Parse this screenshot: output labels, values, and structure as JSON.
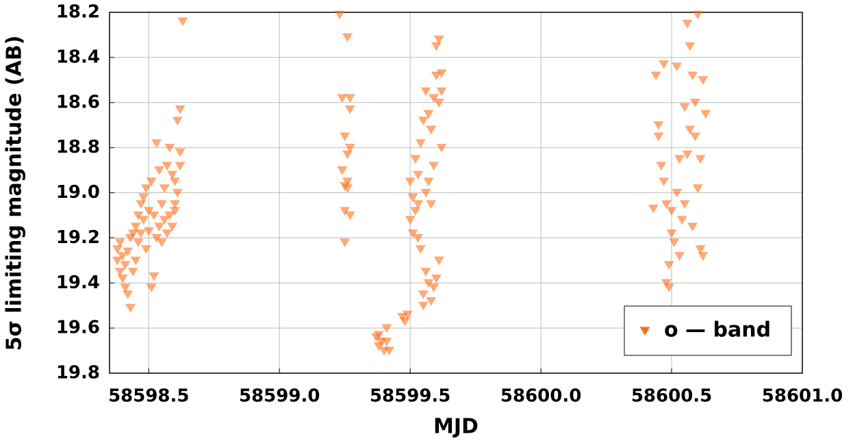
{
  "chart_data": {
    "type": "scatter",
    "xlabel": "MJD",
    "ylabel": "5σ limiting magnitude (AB)",
    "xlim": [
      58598.35,
      58601.0
    ],
    "xticks": [
      58598.5,
      {
        "value": 58599,
        "label": "58599.0"
      },
      58599.5,
      {
        "value": 58600,
        "label": "58600.0"
      },
      58600.5,
      {
        "value": 58601,
        "label": "58601.0"
      }
    ],
    "ylim": [
      19.8,
      18.2
    ],
    "yticks": [
      18.2,
      18.4,
      18.6,
      18.8,
      {
        "value": 19,
        "label": "19.0"
      },
      19.2,
      19.4,
      19.6,
      19.8
    ],
    "grid": true,
    "legend": "lower right",
    "marker": "triangle_down",
    "x": [
      58598.38,
      58598.38,
      58598.39,
      58598.39,
      58598.4,
      58598.4,
      58598.41,
      58598.41,
      58598.42,
      58598.42,
      58598.43,
      58598.43,
      58598.44,
      58598.44,
      58598.45,
      58598.45,
      58598.46,
      58598.46,
      58598.47,
      58598.47,
      58598.48,
      58598.48,
      58598.49,
      58598.49,
      58598.5,
      58598.5,
      58598.51,
      58598.51,
      58598.52,
      58598.52,
      58598.53,
      58598.53,
      58598.54,
      58598.54,
      58598.55,
      58598.55,
      58598.56,
      58598.56,
      58598.57,
      58598.57,
      58598.58,
      58598.58,
      58598.59,
      58598.59,
      58598.6,
      58598.6,
      58598.61,
      58598.61,
      58598.62,
      58598.62,
      58598.63,
      58598.62,
      58598.6,
      58599.23,
      58599.24,
      58599.24,
      58599.25,
      58599.25,
      58599.25,
      58599.26,
      58599.26,
      58599.26,
      58599.27,
      58599.27,
      58599.27,
      58599.27,
      58599.26,
      58599.25,
      58599.37,
      58599.38,
      58599.39,
      58599.4,
      58599.41,
      58599.41,
      58599.42,
      58599.38,
      58599.47,
      58599.48,
      58599.49,
      58599.5,
      58599.5,
      58599.51,
      58599.51,
      58599.52,
      58599.52,
      58599.53,
      58599.53,
      58599.54,
      58599.54,
      58599.55,
      58599.55,
      58599.55,
      58599.56,
      58599.56,
      58599.56,
      58599.57,
      58599.57,
      58599.58,
      58599.58,
      58599.59,
      58599.59,
      58599.59,
      58599.6,
      58599.6,
      58599.6,
      58599.61,
      58599.61,
      58599.61,
      58599.62,
      58599.62,
      58599.62,
      58599.58,
      58599.57,
      58599.53,
      58600.43,
      58600.44,
      58600.45,
      58600.45,
      58600.46,
      58600.47,
      58600.47,
      58600.48,
      58600.48,
      58600.49,
      58600.49,
      58600.5,
      58600.5,
      58600.51,
      58600.52,
      58600.52,
      58600.53,
      58600.53,
      58600.54,
      58600.55,
      58600.55,
      58600.56,
      58600.56,
      58600.57,
      58600.57,
      58600.58,
      58600.58,
      58600.59,
      58600.59,
      58600.6,
      58600.6,
      58600.61,
      58600.61,
      58600.62,
      58600.62,
      58600.63
    ],
    "series": [
      {
        "name": "o — band",
        "color": "#ff6f1a",
        "values": [
          19.25,
          19.3,
          19.35,
          19.22,
          19.28,
          19.38,
          19.32,
          19.42,
          19.45,
          19.26,
          19.51,
          19.2,
          19.35,
          19.18,
          19.3,
          19.15,
          19.1,
          19.22,
          19.05,
          19.18,
          19.02,
          19.12,
          18.98,
          19.25,
          19.08,
          19.17,
          18.95,
          19.42,
          19.37,
          19.1,
          18.78,
          19.2,
          18.9,
          19.15,
          19.05,
          19.22,
          18.98,
          19.12,
          18.88,
          19.18,
          18.8,
          19.1,
          18.92,
          19.15,
          18.95,
          19.08,
          18.68,
          19.0,
          18.82,
          18.63,
          18.24,
          18.88,
          19.05,
          18.21,
          18.58,
          18.9,
          18.75,
          19.08,
          19.22,
          18.31,
          18.83,
          18.98,
          18.58,
          18.63,
          18.8,
          19.1,
          18.95,
          18.97,
          19.64,
          19.68,
          19.66,
          19.7,
          19.6,
          19.66,
          19.7,
          19.63,
          19.55,
          19.57,
          19.54,
          18.95,
          19.12,
          19.02,
          19.18,
          18.85,
          19.08,
          18.92,
          19.2,
          18.78,
          19.25,
          18.68,
          19.45,
          19.5,
          18.55,
          19.35,
          19.0,
          18.65,
          19.4,
          18.72,
          19.48,
          18.58,
          19.42,
          18.88,
          18.48,
          19.38,
          18.35,
          18.32,
          18.6,
          19.3,
          18.55,
          18.8,
          18.47,
          19.05,
          18.95,
          19.05,
          19.07,
          18.48,
          18.7,
          18.75,
          18.88,
          18.43,
          18.95,
          19.05,
          19.4,
          19.42,
          19.32,
          19.18,
          19.08,
          19.22,
          18.44,
          19.0,
          18.85,
          19.28,
          19.12,
          18.62,
          19.05,
          18.25,
          18.83,
          18.35,
          18.72,
          18.48,
          19.15,
          18.6,
          18.75,
          18.21,
          18.98,
          18.85,
          19.25,
          18.5,
          19.28,
          18.65
        ]
      }
    ]
  }
}
